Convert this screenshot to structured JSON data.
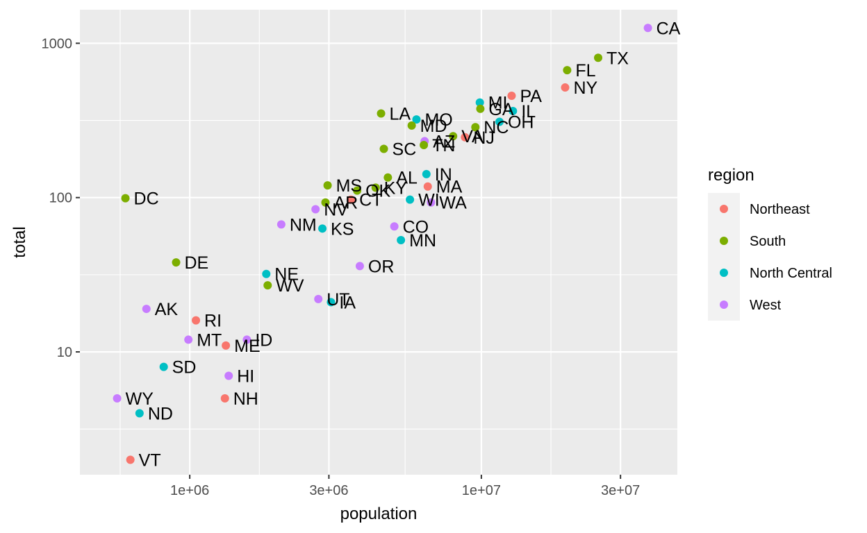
{
  "chart_data": {
    "type": "scatter",
    "xlabel": "population",
    "ylabel": "total",
    "x_scale": "log10",
    "y_scale": "log10",
    "xlim": [
      420000,
      47000000
    ],
    "ylim": [
      1.6,
      1650
    ],
    "x_ticks": [
      {
        "value": 1000000,
        "label": "1e+06"
      },
      {
        "value": 3000000,
        "label": "3e+06"
      },
      {
        "value": 10000000,
        "label": "1e+07"
      },
      {
        "value": 30000000,
        "label": "3e+07"
      }
    ],
    "y_ticks": [
      {
        "value": 10,
        "label": "10"
      },
      {
        "value": 100,
        "label": "100"
      },
      {
        "value": 1000,
        "label": "1000"
      }
    ],
    "grid": true,
    "legend": {
      "title": "region",
      "position": "right",
      "entries": [
        {
          "name": "Northeast",
          "color": "#F8766D"
        },
        {
          "name": "South",
          "color": "#7CAE00"
        },
        {
          "name": "North Central",
          "color": "#00BFC4"
        },
        {
          "name": "West",
          "color": "#C77CFF"
        }
      ]
    },
    "points": [
      {
        "label": "CA",
        "region": "West",
        "population": 37250000,
        "total": 1257
      },
      {
        "label": "TX",
        "region": "South",
        "population": 25150000,
        "total": 805
      },
      {
        "label": "FL",
        "region": "South",
        "population": 19690000,
        "total": 669
      },
      {
        "label": "NY",
        "region": "Northeast",
        "population": 19380000,
        "total": 517
      },
      {
        "label": "PA",
        "region": "Northeast",
        "population": 12700000,
        "total": 457
      },
      {
        "label": "MI",
        "region": "North Central",
        "population": 9880000,
        "total": 413
      },
      {
        "label": "GA",
        "region": "South",
        "population": 9920000,
        "total": 376
      },
      {
        "label": "IL",
        "region": "North Central",
        "population": 12830000,
        "total": 364
      },
      {
        "label": "OH",
        "region": "North Central",
        "population": 11540000,
        "total": 310
      },
      {
        "label": "LA",
        "region": "South",
        "population": 4530000,
        "total": 351
      },
      {
        "label": "MO",
        "region": "North Central",
        "population": 5990000,
        "total": 321
      },
      {
        "label": "MD",
        "region": "South",
        "population": 5770000,
        "total": 293
      },
      {
        "label": "NC",
        "region": "South",
        "population": 9540000,
        "total": 286
      },
      {
        "label": "VA",
        "region": "South",
        "population": 8000000,
        "total": 250
      },
      {
        "label": "NJ",
        "region": "Northeast",
        "population": 8790000,
        "total": 246
      },
      {
        "label": "AZ",
        "region": "West",
        "population": 6390000,
        "total": 232
      },
      {
        "label": "TN",
        "region": "South",
        "population": 6350000,
        "total": 219
      },
      {
        "label": "SC",
        "region": "South",
        "population": 4630000,
        "total": 207
      },
      {
        "label": "IN",
        "region": "North Central",
        "population": 6480000,
        "total": 142
      },
      {
        "label": "AL",
        "region": "South",
        "population": 4780000,
        "total": 135
      },
      {
        "label": "MA",
        "region": "Northeast",
        "population": 6550000,
        "total": 118
      },
      {
        "label": "MS",
        "region": "South",
        "population": 2970000,
        "total": 120
      },
      {
        "label": "OK",
        "region": "South",
        "population": 3750000,
        "total": 111
      },
      {
        "label": "KY",
        "region": "South",
        "population": 4340000,
        "total": 116
      },
      {
        "label": "CT",
        "region": "Northeast",
        "population": 3570000,
        "total": 97
      },
      {
        "label": "AR",
        "region": "South",
        "population": 2920000,
        "total": 93
      },
      {
        "label": "WI",
        "region": "North Central",
        "population": 5690000,
        "total": 97
      },
      {
        "label": "WA",
        "region": "West",
        "population": 6720000,
        "total": 93
      },
      {
        "label": "NV",
        "region": "West",
        "population": 2700000,
        "total": 84
      },
      {
        "label": "DC",
        "region": "South",
        "population": 601700,
        "total": 99
      },
      {
        "label": "NM",
        "region": "West",
        "population": 2060000,
        "total": 67
      },
      {
        "label": "KS",
        "region": "North Central",
        "population": 2850000,
        "total": 63
      },
      {
        "label": "CO",
        "region": "West",
        "population": 5030000,
        "total": 65
      },
      {
        "label": "MN",
        "region": "North Central",
        "population": 5300000,
        "total": 53
      },
      {
        "label": "DE",
        "region": "South",
        "population": 897900,
        "total": 38
      },
      {
        "label": "OR",
        "region": "West",
        "population": 3830000,
        "total": 36
      },
      {
        "label": "NE",
        "region": "North Central",
        "population": 1830000,
        "total": 32
      },
      {
        "label": "WV",
        "region": "South",
        "population": 1850000,
        "total": 27
      },
      {
        "label": "UT",
        "region": "West",
        "population": 2760000,
        "total": 22
      },
      {
        "label": "IA",
        "region": "North Central",
        "population": 3050000,
        "total": 21
      },
      {
        "label": "AK",
        "region": "West",
        "population": 710200,
        "total": 19
      },
      {
        "label": "RI",
        "region": "Northeast",
        "population": 1050000,
        "total": 16
      },
      {
        "label": "MT",
        "region": "West",
        "population": 989400,
        "total": 12
      },
      {
        "label": "ID",
        "region": "West",
        "population": 1570000,
        "total": 12
      },
      {
        "label": "ME",
        "region": "Northeast",
        "population": 1330000,
        "total": 11
      },
      {
        "label": "SD",
        "region": "North Central",
        "population": 814200,
        "total": 8
      },
      {
        "label": "HI",
        "region": "West",
        "population": 1360000,
        "total": 7
      },
      {
        "label": "NH",
        "region": "Northeast",
        "population": 1320000,
        "total": 5
      },
      {
        "label": "WY",
        "region": "West",
        "population": 563600,
        "total": 5
      },
      {
        "label": "ND",
        "region": "North Central",
        "population": 672600,
        "total": 4
      },
      {
        "label": "VT",
        "region": "Northeast",
        "population": 625700,
        "total": 2
      }
    ]
  }
}
